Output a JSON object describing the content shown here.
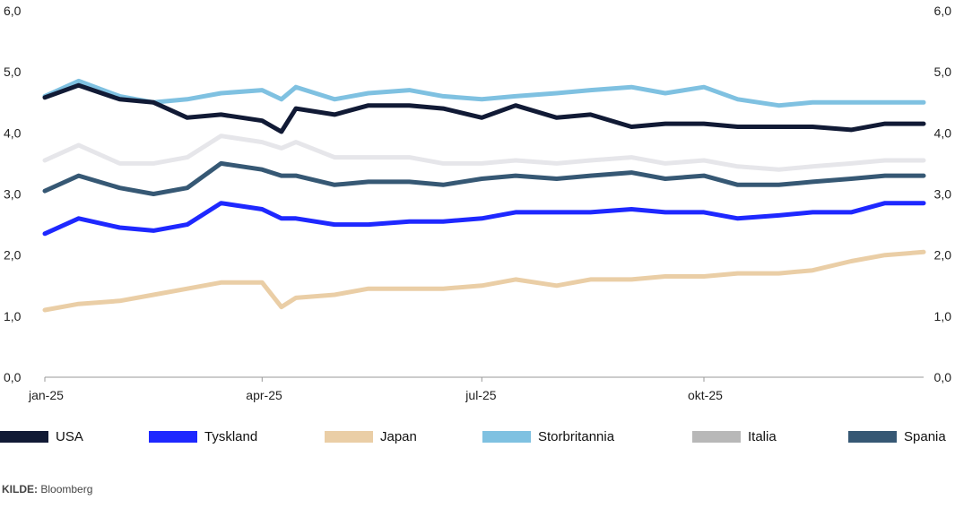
{
  "chart_data": {
    "type": "line",
    "title": "",
    "xlabel": "",
    "ylabel": "",
    "ylim": [
      0,
      6
    ],
    "yticks": [
      "0,0",
      "1,0",
      "2,0",
      "3,0",
      "4,0",
      "5,0",
      "6,0"
    ],
    "y_axis_sides": "both",
    "xlim": [
      "2025-01-01",
      "2025-12-31"
    ],
    "xticks": [
      {
        "date": "2025-01-01",
        "label": "jan-25"
      },
      {
        "date": "2025-04-01",
        "label": "apr-25"
      },
      {
        "date": "2025-07-01",
        "label": "jul-25"
      },
      {
        "date": "2025-10-01",
        "label": "okt-25"
      }
    ],
    "grid": false,
    "legend": "bottom",
    "x": [
      "2025-01-01",
      "2025-01-15",
      "2025-02-01",
      "2025-02-15",
      "2025-03-01",
      "2025-03-15",
      "2025-04-01",
      "2025-04-09",
      "2025-04-15",
      "2025-05-01",
      "2025-05-15",
      "2025-06-01",
      "2025-06-15",
      "2025-07-01",
      "2025-07-15",
      "2025-08-01",
      "2025-08-15",
      "2025-09-01",
      "2025-09-15",
      "2025-10-01",
      "2025-10-15",
      "2025-11-01",
      "2025-11-15",
      "2025-12-01",
      "2025-12-15",
      "2025-12-31"
    ],
    "series": [
      {
        "name": "USA",
        "color": "#111a35",
        "values": [
          4.58,
          4.78,
          4.55,
          4.5,
          4.25,
          4.3,
          4.2,
          4.02,
          4.4,
          4.3,
          4.45,
          4.45,
          4.4,
          4.25,
          4.45,
          4.25,
          4.3,
          4.1,
          4.15,
          4.15,
          4.1,
          4.1,
          4.1,
          4.05,
          4.15,
          4.15
        ]
      },
      {
        "name": "Tyskland",
        "color": "#1e28ff",
        "values": [
          2.35,
          2.6,
          2.45,
          2.4,
          2.5,
          2.85,
          2.75,
          2.6,
          2.6,
          2.5,
          2.5,
          2.55,
          2.55,
          2.6,
          2.7,
          2.7,
          2.7,
          2.75,
          2.7,
          2.7,
          2.6,
          2.65,
          2.7,
          2.7,
          2.85,
          2.85
        ]
      },
      {
        "name": "Japan",
        "color": "#eacea6",
        "values": [
          1.1,
          1.2,
          1.25,
          1.35,
          1.45,
          1.55,
          1.55,
          1.15,
          1.3,
          1.35,
          1.45,
          1.45,
          1.45,
          1.5,
          1.6,
          1.5,
          1.6,
          1.6,
          1.65,
          1.65,
          1.7,
          1.7,
          1.75,
          1.9,
          2.0,
          2.05
        ]
      },
      {
        "name": "Storbritannia",
        "color": "#7fc1e1",
        "values": [
          4.6,
          4.85,
          4.6,
          4.5,
          4.55,
          4.65,
          4.7,
          4.55,
          4.75,
          4.55,
          4.65,
          4.7,
          4.6,
          4.55,
          4.6,
          4.65,
          4.7,
          4.75,
          4.65,
          4.75,
          4.55,
          4.45,
          4.5,
          4.5,
          4.5,
          4.5
        ]
      },
      {
        "name": "Italia",
        "color": "#b8b8b8",
        "line_color": "#e6e6ea",
        "values": [
          3.55,
          3.8,
          3.5,
          3.5,
          3.6,
          3.95,
          3.85,
          3.75,
          3.85,
          3.6,
          3.6,
          3.6,
          3.5,
          3.5,
          3.55,
          3.5,
          3.55,
          3.6,
          3.5,
          3.55,
          3.45,
          3.4,
          3.45,
          3.5,
          3.55,
          3.55
        ]
      },
      {
        "name": "Spania",
        "color": "#365874",
        "values": [
          3.05,
          3.3,
          3.1,
          3.0,
          3.1,
          3.5,
          3.4,
          3.3,
          3.3,
          3.15,
          3.2,
          3.2,
          3.15,
          3.25,
          3.3,
          3.25,
          3.3,
          3.35,
          3.25,
          3.3,
          3.15,
          3.15,
          3.2,
          3.25,
          3.3,
          3.3
        ]
      }
    ]
  },
  "source": {
    "label": "KILDE:",
    "text": "Bloomberg"
  }
}
